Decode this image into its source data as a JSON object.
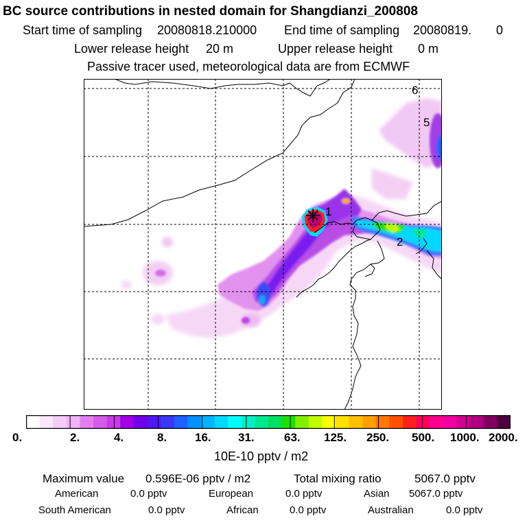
{
  "header": {
    "title": "BC  source contributions in nested domain for Shangdianzi_200808",
    "start_label": "Start time of sampling",
    "start_value": "20080818.210000",
    "end_label": "End time of sampling",
    "end_value": "20080819.",
    "end_suffix": "0",
    "lower_label": "Lower release height",
    "lower_value": "20 m",
    "upper_label": "Upper release height",
    "upper_value": "0 m",
    "note": "Passive tracer used, meteorological data are from ECMWF"
  },
  "map": {
    "markers": [
      "1",
      "2",
      "5",
      "6"
    ],
    "station": "Shangdianzi"
  },
  "colorbar": {
    "colors": [
      "#ffffff",
      "#fbe6fb",
      "#f5ccf8",
      "#f0b3f5",
      "#e27fee",
      "#d45ce8",
      "#c73ce4",
      "#a000e6",
      "#7000e6",
      "#5018f0",
      "#3838f5",
      "#2060ff",
      "#0090ff",
      "#00b4ff",
      "#00d8ff",
      "#00ffff",
      "#00f0c8",
      "#00e890",
      "#00e060",
      "#20e000",
      "#80f000",
      "#c0ff00",
      "#ffff00",
      "#ffe000",
      "#ffc000",
      "#ffa000",
      "#ff7800",
      "#ff5000",
      "#ff2020",
      "#ff0060",
      "#ff0090",
      "#f000a0",
      "#d00090",
      "#b00080",
      "#800060",
      "#500040"
    ],
    "ticks": [
      "0.",
      "2.",
      "4.",
      "8.",
      "16.",
      "31.",
      "63.",
      "125.",
      "250.",
      "500.",
      "1000.",
      "2000."
    ],
    "unit": "10E-10 pptv / m2"
  },
  "stats": {
    "max_label": "Maximum value",
    "max_value": "0.596E-06 pptv / m2",
    "total_label": "Total mixing ratio",
    "total_value": "5067.0 pptv",
    "regions": [
      {
        "name": "American",
        "value": "0.0 pptv"
      },
      {
        "name": "European",
        "value": "0.0 pptv"
      },
      {
        "name": "Asian",
        "value": "5067.0 pptv"
      },
      {
        "name": "South American",
        "value": "0.0 pptv"
      },
      {
        "name": "African",
        "value": "0.0 pptv"
      },
      {
        "name": "Australian",
        "value": "0.0 pptv"
      }
    ]
  }
}
